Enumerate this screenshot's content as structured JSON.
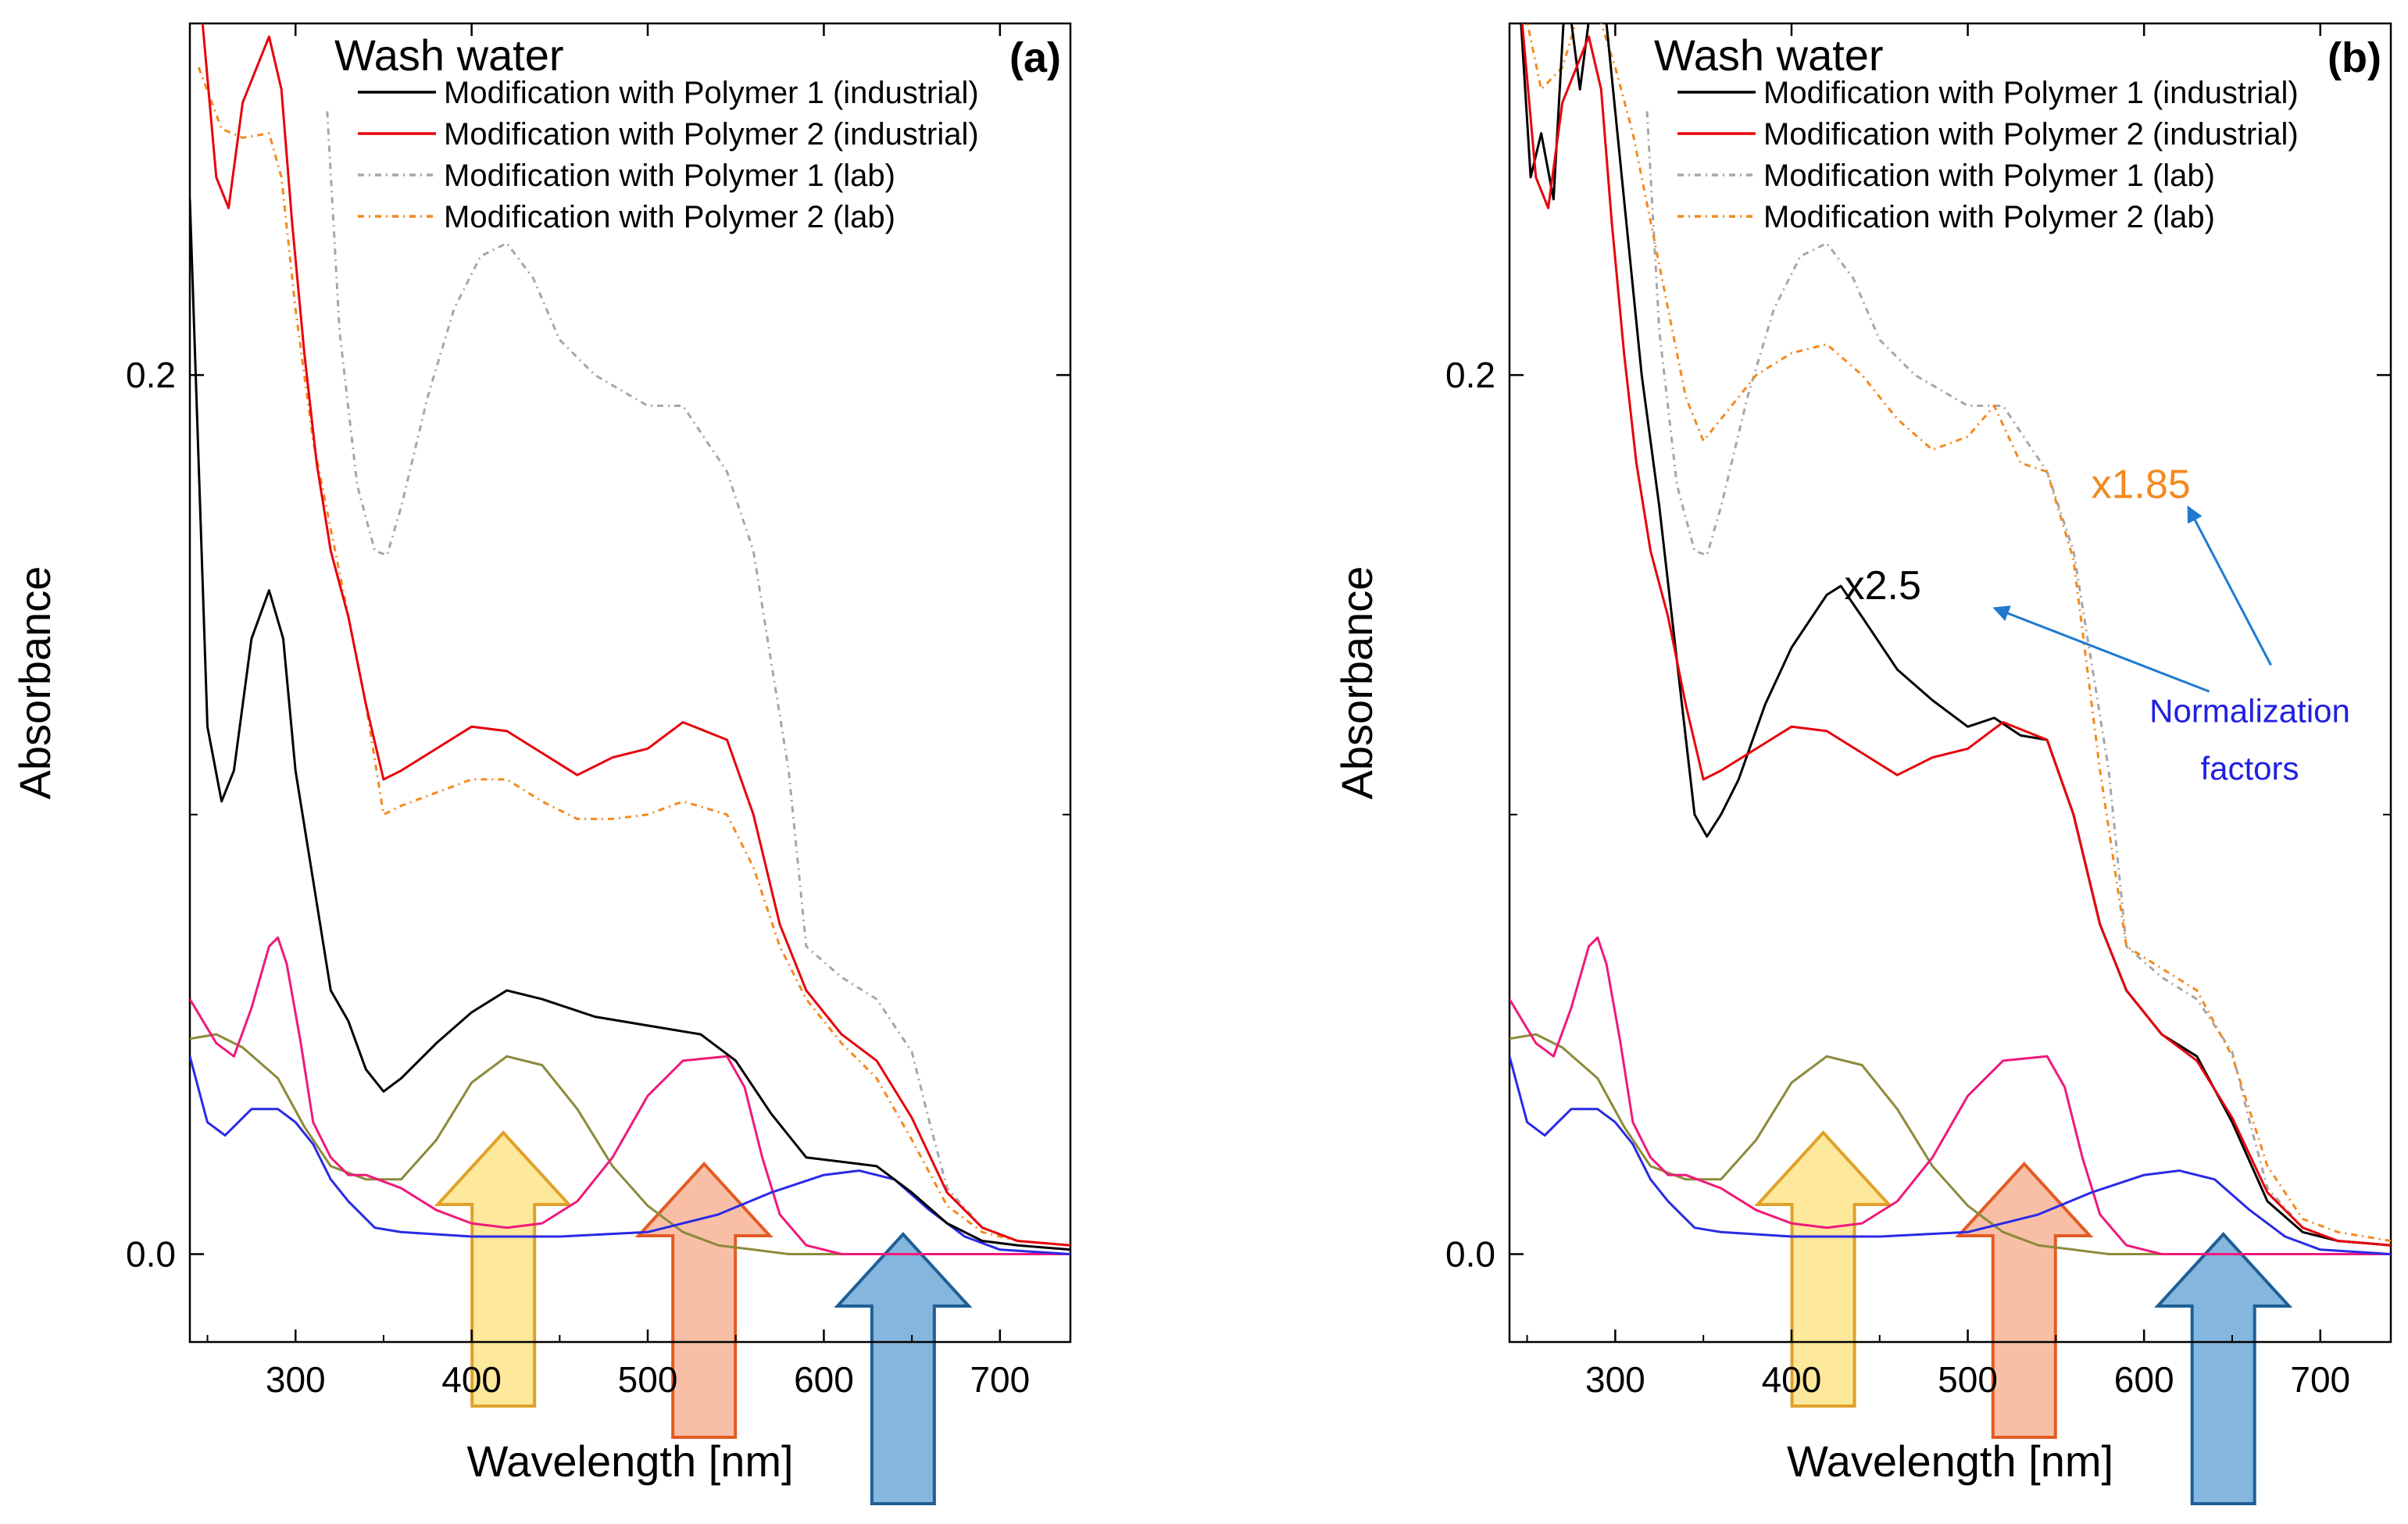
{
  "colors": {
    "p1_ind": "#000000",
    "p2_ind": "#e8000b",
    "p1_lab": "#a6a6a6",
    "p2_lab": "#f28a1e",
    "dye_olive": "#8c8a3c",
    "dye_magenta": "#f0197a",
    "dye_blue": "#2a2ae6",
    "arrow_yellow_fill": "#fde489",
    "arrow_yellow_edge": "#e0a12a",
    "arrow_orange_fill": "#f7b497",
    "arrow_orange_edge": "#e35b24",
    "arrow_blue_fill": "#6fa9d8",
    "arrow_blue_edge": "#1f5f96",
    "note_blue": "#2020e0",
    "pointer_blue": "#1f7ad0",
    "factor_orange": "#f28a1e"
  },
  "chart_data": [
    {
      "type": "line",
      "panel_label": "(a)",
      "title": "Wash water",
      "xlabel": "Wavelength [nm]",
      "ylabel": "Absorbance",
      "xlim": [
        240,
        740
      ],
      "ylim": [
        -0.02,
        0.28
      ],
      "xticks": [
        300,
        400,
        500,
        600,
        700
      ],
      "xtick_labels": [
        "300",
        "400",
        "500",
        "600",
        "700"
      ],
      "yticks": [
        0.0,
        0.2
      ],
      "ytick_labels": [
        "0.0",
        "0.2"
      ],
      "y_minor_ticks": [
        0.1
      ],
      "legend_position": "top-right",
      "series": [
        {
          "name": "Modification with Polymer 1 (industrial)",
          "color_key": "p1_ind",
          "dash": "solid",
          "legend": true,
          "x": [
            240,
            250,
            258,
            265,
            275,
            285,
            293,
            300,
            310,
            320,
            330,
            340,
            350,
            360,
            380,
            400,
            420,
            440,
            470,
            500,
            530,
            550,
            570,
            590,
            610,
            630,
            650,
            670,
            690,
            710,
            740
          ],
          "y": [
            0.24,
            0.12,
            0.103,
            0.11,
            0.14,
            0.151,
            0.14,
            0.11,
            0.085,
            0.06,
            0.053,
            0.042,
            0.037,
            0.04,
            0.048,
            0.055,
            0.06,
            0.058,
            0.054,
            0.052,
            0.05,
            0.044,
            0.032,
            0.022,
            0.021,
            0.02,
            0.014,
            0.007,
            0.003,
            0.002,
            0.001
          ]
        },
        {
          "name": "Modification with Polymer 2 (industrial)",
          "color_key": "p2_ind",
          "dash": "solid",
          "legend": true,
          "x": [
            245,
            255,
            262,
            270,
            285,
            292,
            298,
            305,
            312,
            320,
            330,
            340,
            350,
            360,
            380,
            400,
            420,
            440,
            460,
            480,
            500,
            520,
            545,
            560,
            575,
            590,
            610,
            630,
            650,
            670,
            690,
            710,
            740
          ],
          "y": [
            0.29,
            0.245,
            0.238,
            0.262,
            0.277,
            0.265,
            0.235,
            0.205,
            0.18,
            0.16,
            0.145,
            0.125,
            0.108,
            0.11,
            0.115,
            0.12,
            0.119,
            0.114,
            0.109,
            0.113,
            0.115,
            0.121,
            0.117,
            0.1,
            0.075,
            0.06,
            0.05,
            0.044,
            0.031,
            0.014,
            0.006,
            0.003,
            0.002
          ]
        },
        {
          "name": "Modification with Polymer 1 (lab)",
          "color_key": "p1_lab",
          "dash": "8,6,2,6",
          "legend": true,
          "x": [
            318,
            325,
            335,
            345,
            352,
            360,
            375,
            390,
            405,
            420,
            435,
            450,
            470,
            500,
            520,
            545,
            560,
            570,
            580,
            590,
            610,
            630,
            650,
            660,
            670,
            690,
            710,
            740
          ],
          "y": [
            0.26,
            0.21,
            0.175,
            0.16,
            0.159,
            0.17,
            0.195,
            0.215,
            0.227,
            0.23,
            0.222,
            0.208,
            0.2,
            0.193,
            0.193,
            0.178,
            0.16,
            0.135,
            0.11,
            0.07,
            0.063,
            0.058,
            0.046,
            0.03,
            0.015,
            0.006,
            0.003,
            0.002
          ]
        },
        {
          "name": "Modification with Polymer 2 (lab)",
          "color_key": "p2_lab",
          "dash": "8,6,2,6",
          "legend": true,
          "x": [
            245,
            258,
            270,
            285,
            292,
            300,
            310,
            320,
            330,
            340,
            350,
            360,
            380,
            400,
            420,
            440,
            460,
            480,
            500,
            520,
            545,
            560,
            575,
            590,
            610,
            630,
            650,
            670,
            690,
            710,
            740
          ],
          "y": [
            0.27,
            0.256,
            0.254,
            0.255,
            0.245,
            0.215,
            0.185,
            0.165,
            0.145,
            0.125,
            0.1,
            0.102,
            0.105,
            0.108,
            0.108,
            0.103,
            0.099,
            0.099,
            0.1,
            0.103,
            0.1,
            0.088,
            0.07,
            0.058,
            0.048,
            0.04,
            0.026,
            0.011,
            0.005,
            0.003,
            0.002
          ]
        },
        {
          "name": "olive dye",
          "color_key": "dye_olive",
          "dash": "solid",
          "legend": false,
          "x": [
            240,
            255,
            270,
            290,
            305,
            320,
            340,
            360,
            380,
            400,
            420,
            440,
            460,
            480,
            500,
            520,
            540,
            560,
            580,
            600,
            640,
            680,
            740
          ],
          "y": [
            0.049,
            0.05,
            0.047,
            0.04,
            0.029,
            0.02,
            0.017,
            0.017,
            0.026,
            0.039,
            0.045,
            0.043,
            0.033,
            0.02,
            0.011,
            0.005,
            0.002,
            0.001,
            0.0,
            0.0,
            0.0,
            0.0,
            0.0
          ]
        },
        {
          "name": "magenta dye",
          "color_key": "dye_magenta",
          "dash": "solid",
          "legend": false,
          "x": [
            240,
            255,
            265,
            275,
            285,
            290,
            295,
            303,
            310,
            320,
            330,
            340,
            360,
            380,
            400,
            420,
            440,
            460,
            480,
            500,
            520,
            545,
            555,
            565,
            575,
            590,
            610,
            640,
            680,
            740
          ],
          "y": [
            0.058,
            0.048,
            0.045,
            0.056,
            0.07,
            0.072,
            0.066,
            0.048,
            0.03,
            0.022,
            0.018,
            0.018,
            0.015,
            0.01,
            0.007,
            0.006,
            0.007,
            0.012,
            0.022,
            0.036,
            0.044,
            0.045,
            0.038,
            0.022,
            0.009,
            0.002,
            0.0,
            0.0,
            0.0,
            0.0
          ]
        },
        {
          "name": "blue dye",
          "color_key": "dye_blue",
          "dash": "solid",
          "legend": false,
          "x": [
            240,
            250,
            260,
            275,
            290,
            300,
            310,
            320,
            330,
            345,
            360,
            400,
            450,
            500,
            540,
            570,
            600,
            620,
            640,
            660,
            680,
            700,
            740
          ],
          "y": [
            0.045,
            0.03,
            0.027,
            0.033,
            0.033,
            0.03,
            0.025,
            0.017,
            0.012,
            0.006,
            0.005,
            0.004,
            0.004,
            0.005,
            0.009,
            0.014,
            0.018,
            0.019,
            0.017,
            0.01,
            0.004,
            0.001,
            0.0
          ]
        }
      ],
      "annotations": []
    },
    {
      "type": "line",
      "panel_label": "(b)",
      "title": "Wash water",
      "xlabel": "Wavelength [nm]",
      "ylabel": "Absorbance",
      "xlim": [
        240,
        740
      ],
      "ylim": [
        -0.02,
        0.28
      ],
      "xticks": [
        300,
        400,
        500,
        600,
        700
      ],
      "xtick_labels": [
        "300",
        "400",
        "500",
        "600",
        "700"
      ],
      "yticks": [
        0.0,
        0.2
      ],
      "ytick_labels": [
        "0.0",
        "0.2"
      ],
      "y_minor_ticks": [
        0.1
      ],
      "legend_position": "top-right",
      "series": [
        {
          "name": "Modification with Polymer 1 (industrial)",
          "color_key": "p1_ind",
          "dash": "solid",
          "legend": true,
          "x": [
            245,
            252,
            258,
            265,
            272,
            280,
            288,
            295,
            305,
            315,
            325,
            335,
            345,
            352,
            360,
            370,
            385,
            400,
            420,
            428,
            440,
            460,
            480,
            500,
            515,
            530,
            545,
            560,
            575,
            590,
            610,
            630,
            650,
            670,
            690,
            710,
            740
          ],
          "y": [
            0.29,
            0.245,
            0.255,
            0.24,
            0.29,
            0.265,
            0.29,
            0.28,
            0.24,
            0.2,
            0.17,
            0.135,
            0.1,
            0.095,
            0.1,
            0.108,
            0.125,
            0.138,
            0.15,
            0.152,
            0.145,
            0.133,
            0.126,
            0.12,
            0.122,
            0.118,
            0.117,
            0.1,
            0.075,
            0.06,
            0.05,
            0.045,
            0.03,
            0.012,
            0.005,
            0.003,
            0.002
          ]
        },
        {
          "name": "Modification with Polymer 2 (industrial)",
          "color_key": "p2_ind",
          "dash": "solid",
          "legend": true,
          "x": [
            245,
            255,
            262,
            270,
            285,
            292,
            298,
            305,
            312,
            320,
            330,
            340,
            350,
            360,
            380,
            400,
            420,
            440,
            460,
            480,
            500,
            520,
            545,
            560,
            575,
            590,
            610,
            630,
            650,
            670,
            690,
            710,
            740
          ],
          "y": [
            0.29,
            0.245,
            0.238,
            0.262,
            0.277,
            0.265,
            0.235,
            0.205,
            0.18,
            0.16,
            0.145,
            0.125,
            0.108,
            0.11,
            0.115,
            0.12,
            0.119,
            0.114,
            0.109,
            0.113,
            0.115,
            0.121,
            0.117,
            0.1,
            0.075,
            0.06,
            0.05,
            0.044,
            0.031,
            0.014,
            0.006,
            0.003,
            0.002
          ]
        },
        {
          "name": "Modification with Polymer 1 (lab)",
          "color_key": "p1_lab",
          "dash": "8,6,2,6",
          "legend": true,
          "x": [
            318,
            325,
            335,
            345,
            352,
            360,
            375,
            390,
            405,
            420,
            435,
            450,
            470,
            500,
            520,
            545,
            560,
            570,
            580,
            590,
            610,
            630,
            650,
            660,
            670,
            690,
            710,
            740
          ],
          "y": [
            0.26,
            0.21,
            0.175,
            0.16,
            0.159,
            0.17,
            0.195,
            0.215,
            0.227,
            0.23,
            0.222,
            0.208,
            0.2,
            0.193,
            0.193,
            0.178,
            0.16,
            0.135,
            0.11,
            0.07,
            0.063,
            0.058,
            0.046,
            0.03,
            0.015,
            0.006,
            0.003,
            0.002
          ]
        },
        {
          "name": "Modification with Polymer 2 (lab)",
          "color_key": "p2_lab",
          "dash": "8,6,2,6",
          "legend": true,
          "x": [
            245,
            258,
            270,
            285,
            292,
            300,
            310,
            320,
            330,
            340,
            350,
            360,
            380,
            400,
            420,
            440,
            460,
            480,
            500,
            515,
            530,
            545,
            560,
            575,
            590,
            610,
            630,
            650,
            670,
            690,
            710,
            740
          ],
          "y": [
            0.29,
            0.265,
            0.27,
            0.29,
            0.28,
            0.27,
            0.255,
            0.235,
            0.215,
            0.195,
            0.185,
            0.19,
            0.2,
            0.205,
            0.207,
            0.2,
            0.19,
            0.183,
            0.186,
            0.193,
            0.18,
            0.178,
            0.158,
            0.11,
            0.07,
            0.065,
            0.06,
            0.045,
            0.02,
            0.008,
            0.005,
            0.003
          ]
        },
        {
          "name": "olive dye",
          "color_key": "dye_olive",
          "dash": "solid",
          "legend": false,
          "x": [
            240,
            255,
            270,
            290,
            305,
            320,
            340,
            360,
            380,
            400,
            420,
            440,
            460,
            480,
            500,
            520,
            540,
            560,
            580,
            600,
            640,
            680,
            740
          ],
          "y": [
            0.049,
            0.05,
            0.047,
            0.04,
            0.029,
            0.02,
            0.017,
            0.017,
            0.026,
            0.039,
            0.045,
            0.043,
            0.033,
            0.02,
            0.011,
            0.005,
            0.002,
            0.001,
            0.0,
            0.0,
            0.0,
            0.0,
            0.0
          ]
        },
        {
          "name": "magenta dye",
          "color_key": "dye_magenta",
          "dash": "solid",
          "legend": false,
          "x": [
            240,
            255,
            265,
            275,
            285,
            290,
            295,
            303,
            310,
            320,
            330,
            340,
            360,
            380,
            400,
            420,
            440,
            460,
            480,
            500,
            520,
            545,
            555,
            565,
            575,
            590,
            610,
            640,
            680,
            740
          ],
          "y": [
            0.058,
            0.048,
            0.045,
            0.056,
            0.07,
            0.072,
            0.066,
            0.048,
            0.03,
            0.022,
            0.018,
            0.018,
            0.015,
            0.01,
            0.007,
            0.006,
            0.007,
            0.012,
            0.022,
            0.036,
            0.044,
            0.045,
            0.038,
            0.022,
            0.009,
            0.002,
            0.0,
            0.0,
            0.0,
            0.0
          ]
        },
        {
          "name": "blue dye",
          "color_key": "dye_blue",
          "dash": "solid",
          "legend": false,
          "x": [
            240,
            250,
            260,
            275,
            290,
            300,
            310,
            320,
            330,
            345,
            360,
            400,
            450,
            500,
            540,
            570,
            600,
            620,
            640,
            660,
            680,
            700,
            740
          ],
          "y": [
            0.045,
            0.03,
            0.027,
            0.033,
            0.033,
            0.03,
            0.025,
            0.017,
            0.012,
            0.006,
            0.005,
            0.004,
            0.004,
            0.005,
            0.009,
            0.014,
            0.018,
            0.019,
            0.017,
            0.01,
            0.004,
            0.001,
            0.0
          ]
        }
      ],
      "annotations": [
        {
          "text": "x2.5",
          "color_key": "p1_ind"
        },
        {
          "text": "x1.85",
          "color_key": "factor_orange"
        },
        {
          "text": "Normalization factors",
          "lines": [
            "Normalization",
            "factors"
          ],
          "color_key": "note_blue"
        }
      ]
    }
  ]
}
